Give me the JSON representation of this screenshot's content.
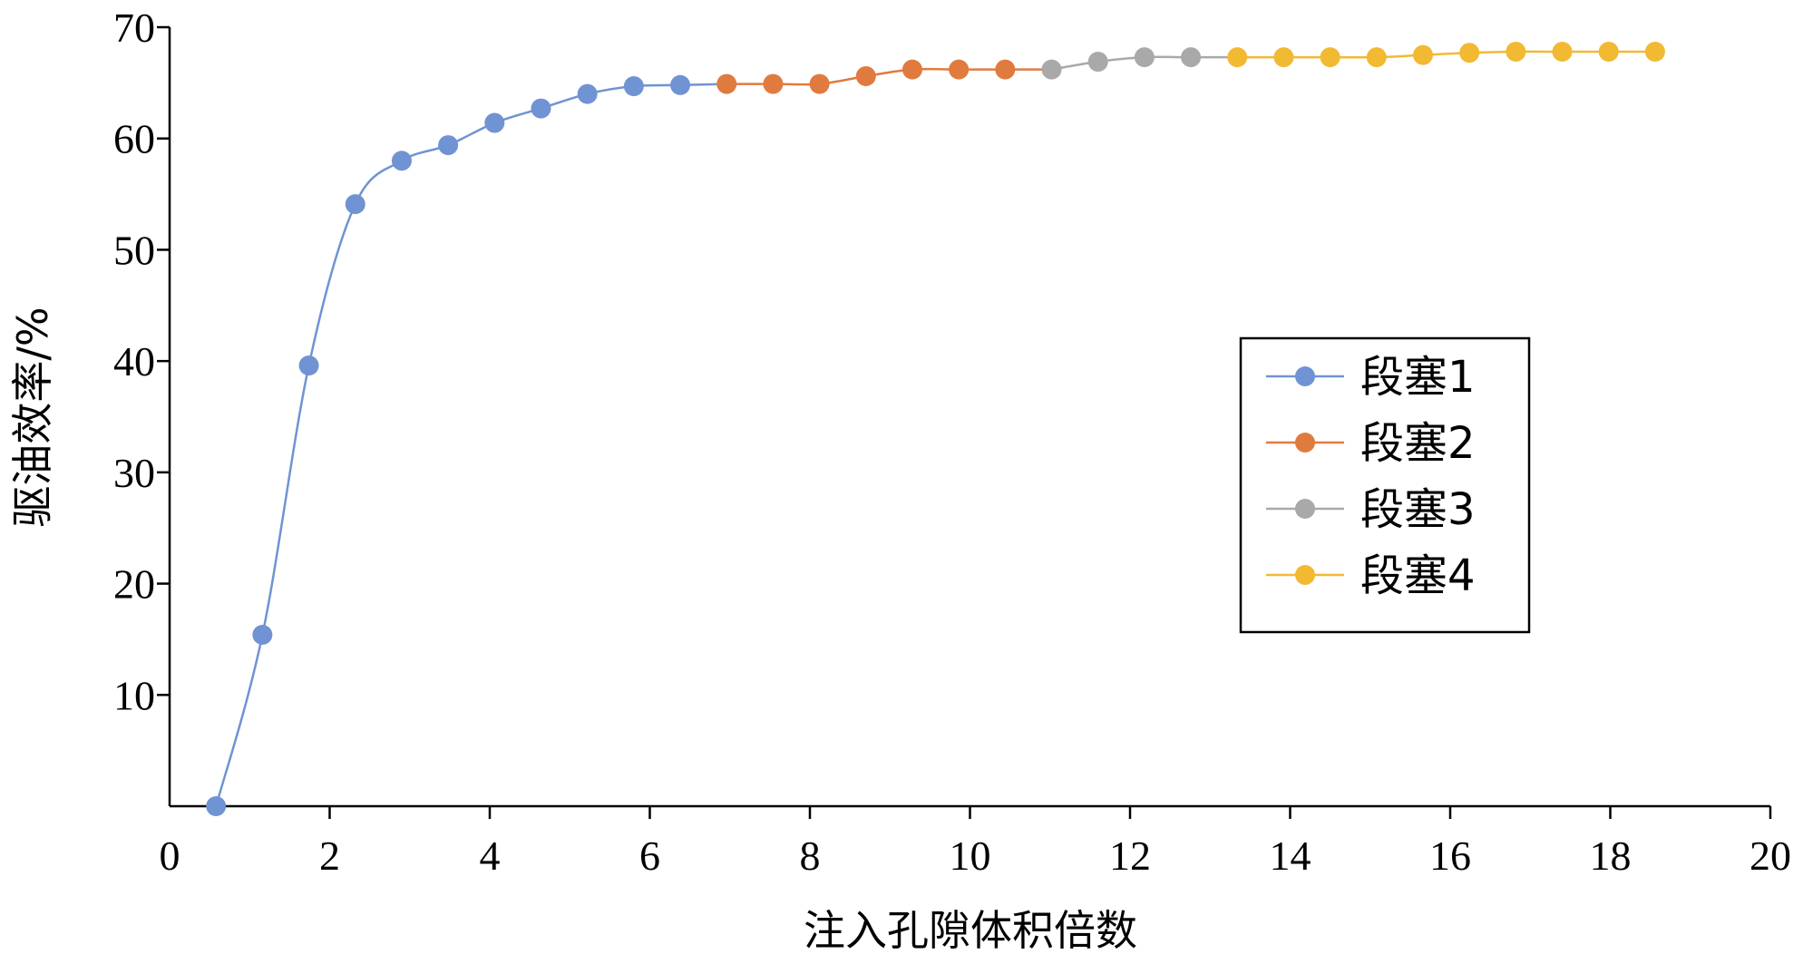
{
  "chart_data": {
    "type": "line",
    "title": "",
    "xlabel": "注入孔隙体积倍数",
    "ylabel": "驱油效率/%",
    "xlim": [
      0,
      20
    ],
    "ylim": [
      0,
      70
    ],
    "x_ticks": [
      0,
      2,
      4,
      6,
      8,
      10,
      12,
      14,
      16,
      18,
      20
    ],
    "y_ticks": [
      10,
      20,
      30,
      40,
      50,
      60,
      70
    ],
    "grid": false,
    "smooth": true,
    "legend": {
      "position": "right-middle"
    },
    "series": [
      {
        "name": "段塞1",
        "color": "#7093D3",
        "x": [
          0.58,
          1.16,
          1.74,
          2.32,
          2.9,
          3.48,
          4.06,
          4.64,
          5.22,
          5.8,
          6.38
        ],
        "y": [
          0,
          15.4,
          39.6,
          54.1,
          58.0,
          59.4,
          61.4,
          62.7,
          64.0,
          64.7,
          64.8
        ]
      },
      {
        "name": "段塞2",
        "color": "#E07B3F",
        "x": [
          6.96,
          7.54,
          8.12,
          8.7,
          9.28,
          9.86,
          10.44
        ],
        "y": [
          64.9,
          64.9,
          64.9,
          65.6,
          66.2,
          66.2,
          66.2
        ]
      },
      {
        "name": "段塞3",
        "color": "#A9A9A9",
        "x": [
          11.02,
          11.6,
          12.18,
          12.76
        ],
        "y": [
          66.2,
          66.9,
          67.3,
          67.3
        ]
      },
      {
        "name": "段塞4",
        "color": "#F2B933",
        "x": [
          13.34,
          13.92,
          14.5,
          15.08,
          15.66,
          16.24,
          16.82,
          17.4,
          17.98,
          18.56
        ],
        "y": [
          67.3,
          67.3,
          67.3,
          67.3,
          67.5,
          67.7,
          67.8,
          67.8,
          67.8,
          67.8
        ]
      }
    ]
  }
}
